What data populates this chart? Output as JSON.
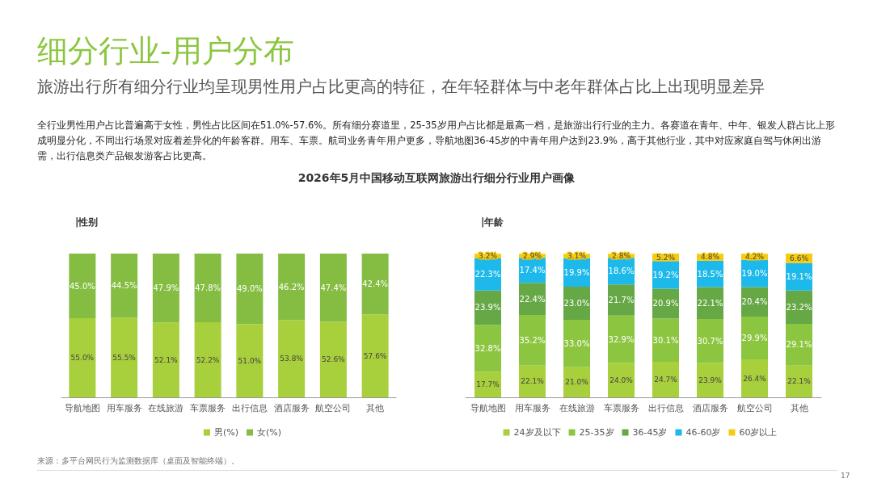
{
  "chart_data": [
    {
      "type": "other",
      "title": "细分行业-用户分布",
      "subtitle": "旅游出行所有细分行业均呈现男性用户占比更高的特征，在年轻群体与中老年群体占比上出现明显差异",
      "annotations": [
        "全行业男性用户占比普遍高于女性，男性占比区间在51.0%-57.6%。所有细分赛道里，25-35岁用户占比都是最高一档，是旅游出行行业的主力。各赛道在青年、中年、银发人群占比上形成明显分化，不同出行场景对应着差异化的年龄客群。用车、车票。航司业务青年用户更多，导航地图36-45岁的中青年用户达到23.9%，高于其他行业，其中对应家庭自驾与休闲出游需，出行信息类产品银发游客占比更高。",
        "2026年5月中国移动互联网旅游出行细分行业用户画像",
        "来源：多平台网民行为监测数据库（桌面及智能终端）。",
        "17"
      ]
    },
    {
      "type": "bar",
      "title": "|性别",
      "stacked": true,
      "legend": "bottom",
      "categories": [
        "导航地图",
        "用车服务",
        "在线旅游",
        "车票服务",
        "出行信息",
        "酒店服务",
        "航空公司",
        "其他"
      ],
      "series": [
        {
          "name": "男(%)",
          "color": "#a8cf3c",
          "values": [
            55.0,
            55.5,
            52.1,
            52.2,
            51.0,
            53.8,
            52.6,
            57.6
          ],
          "value_labels": [
            "55.0%",
            "55.5%",
            "52.1%",
            "52.2%",
            "51.0%",
            "53.8%",
            "52.6%",
            "57.6%"
          ]
        },
        {
          "name": "女(%)",
          "color": "#84bd41",
          "values": [
            45.0,
            44.5,
            47.9,
            47.8,
            49.0,
            46.2,
            47.4,
            42.4
          ],
          "value_labels": [
            "45.0%",
            "44.5%",
            "47.9%",
            "47.8%",
            "49.0%",
            "46.2%",
            "47.4%",
            "42.4%"
          ]
        }
      ]
    },
    {
      "type": "bar",
      "title": "|年龄",
      "stacked": true,
      "legend": "bottom",
      "categories": [
        "导航地图",
        "用车服务",
        "在线旅游",
        "车票服务",
        "出行信息",
        "酒店服务",
        "航空公司",
        "其他"
      ],
      "series": [
        {
          "name": "24岁及以下",
          "color": "#a8cf3c",
          "values": [
            17.7,
            22.1,
            21.0,
            24.0,
            24.7,
            23.9,
            26.4,
            22.1
          ],
          "value_labels": [
            "17.7%",
            "22.1%",
            "21.0%",
            "24.0%",
            "24.7%",
            "23.9%",
            "26.4%",
            "22.1%"
          ]
        },
        {
          "name": "25-35岁",
          "color": "#8cc640",
          "values": [
            32.8,
            35.2,
            33.0,
            32.9,
            30.1,
            30.7,
            29.9,
            29.1
          ],
          "value_labels": [
            "32.8%",
            "35.2%",
            "33.0%",
            "32.9%",
            "30.1%",
            "30.7%",
            "29.9%",
            "29.1%"
          ]
        },
        {
          "name": "36-45岁",
          "color": "#65a845",
          "values": [
            23.9,
            22.4,
            23.0,
            21.7,
            20.9,
            22.1,
            20.4,
            23.2
          ],
          "value_labels": [
            "23.9%",
            "22.4%",
            "23.0%",
            "21.7%",
            "20.9%",
            "22.1%",
            "20.4%",
            "23.2%"
          ]
        },
        {
          "name": "46-60岁",
          "color": "#1db9ea",
          "values": [
            22.3,
            17.4,
            19.9,
            18.6,
            19.2,
            18.5,
            19.0,
            19.1
          ],
          "value_labels": [
            "22.3%",
            "17.4%",
            "19.9%",
            "18.6%",
            "19.2%",
            "18.5%",
            "19.0%",
            "19.1%"
          ]
        },
        {
          "name": "60岁以上",
          "color": "#f6cb10",
          "values": [
            3.2,
            2.9,
            3.1,
            2.8,
            5.2,
            4.8,
            4.2,
            6.6
          ],
          "value_labels": [
            "3.2%",
            "2.9%",
            "3.1%",
            "2.8%",
            "5.2%",
            "4.8%",
            "4.2%",
            "6.6%"
          ]
        }
      ]
    }
  ]
}
